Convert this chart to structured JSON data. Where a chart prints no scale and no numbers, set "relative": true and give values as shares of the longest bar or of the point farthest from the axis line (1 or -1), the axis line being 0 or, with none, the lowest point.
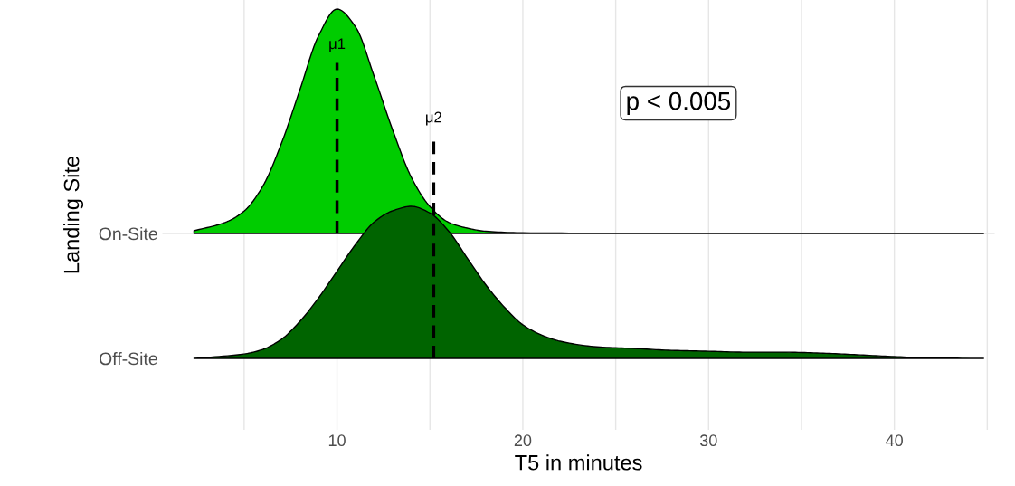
{
  "chart_data": [
    {
      "type": "area",
      "relative": true,
      "xlabel": "T5 in minutes",
      "ylabel": "Landing Site",
      "xlim": [
        0.6,
        45.4
      ],
      "xticks": [
        {
          "value": 5,
          "label": null
        },
        10,
        {
          "value": 15,
          "label": null
        },
        20,
        {
          "value": 25,
          "label": null
        },
        30,
        {
          "value": 35,
          "label": null
        },
        40,
        {
          "value": 45,
          "label": null
        }
      ],
      "grid": true,
      "series": [
        {
          "name": "On-Site",
          "color": "#00cc00",
          "x": [
            2.3,
            4,
            5,
            6,
            7,
            8,
            9,
            10,
            11,
            12,
            13,
            14,
            15,
            16,
            17,
            18,
            20,
            25,
            30,
            44.8
          ],
          "values": [
            0.012,
            0.05,
            0.1,
            0.21,
            0.4,
            0.64,
            0.88,
            1,
            0.92,
            0.7,
            0.46,
            0.25,
            0.12,
            0.05,
            0.024,
            0.01,
            0.003,
            0.001,
            0,
            0
          ]
        }
      ],
      "ref_lines": [
        {
          "axis": "x",
          "value": 10,
          "label": "μ1",
          "line_style": "dashed",
          "color": "#000000"
        }
      ],
      "annotations": [
        "p < 0.005"
      ]
    },
    {
      "type": "area",
      "relative": true,
      "xlim": [
        0.6,
        45.4
      ],
      "xticks": [
        {
          "value": 5,
          "label": null
        },
        10,
        {
          "value": 15,
          "label": null
        },
        20,
        {
          "value": 25,
          "label": null
        },
        30,
        {
          "value": 35,
          "label": null
        },
        40,
        {
          "value": 45,
          "label": null
        }
      ],
      "tick_labels": "y",
      "series": [
        {
          "name": "Off-Site",
          "color": "#006400",
          "x": [
            2.3,
            5,
            6,
            7,
            8,
            9,
            10,
            11,
            12,
            13,
            14,
            15,
            16,
            17,
            18,
            19,
            20,
            21,
            22,
            24,
            26,
            28,
            30,
            32,
            34,
            36,
            38,
            40,
            42,
            44.8
          ],
          "values": [
            0,
            0.029,
            0.059,
            0.125,
            0.243,
            0.397,
            0.574,
            0.75,
            0.897,
            0.971,
            1,
            0.956,
            0.838,
            0.662,
            0.485,
            0.338,
            0.221,
            0.154,
            0.113,
            0.076,
            0.065,
            0.053,
            0.047,
            0.041,
            0.041,
            0.035,
            0.024,
            0.012,
            0.003,
            0
          ]
        }
      ],
      "ref_lines": [
        {
          "axis": "x",
          "value": 15.2,
          "label": "μ2",
          "line_style": "dashed",
          "color": "#000000"
        }
      ]
    }
  ]
}
